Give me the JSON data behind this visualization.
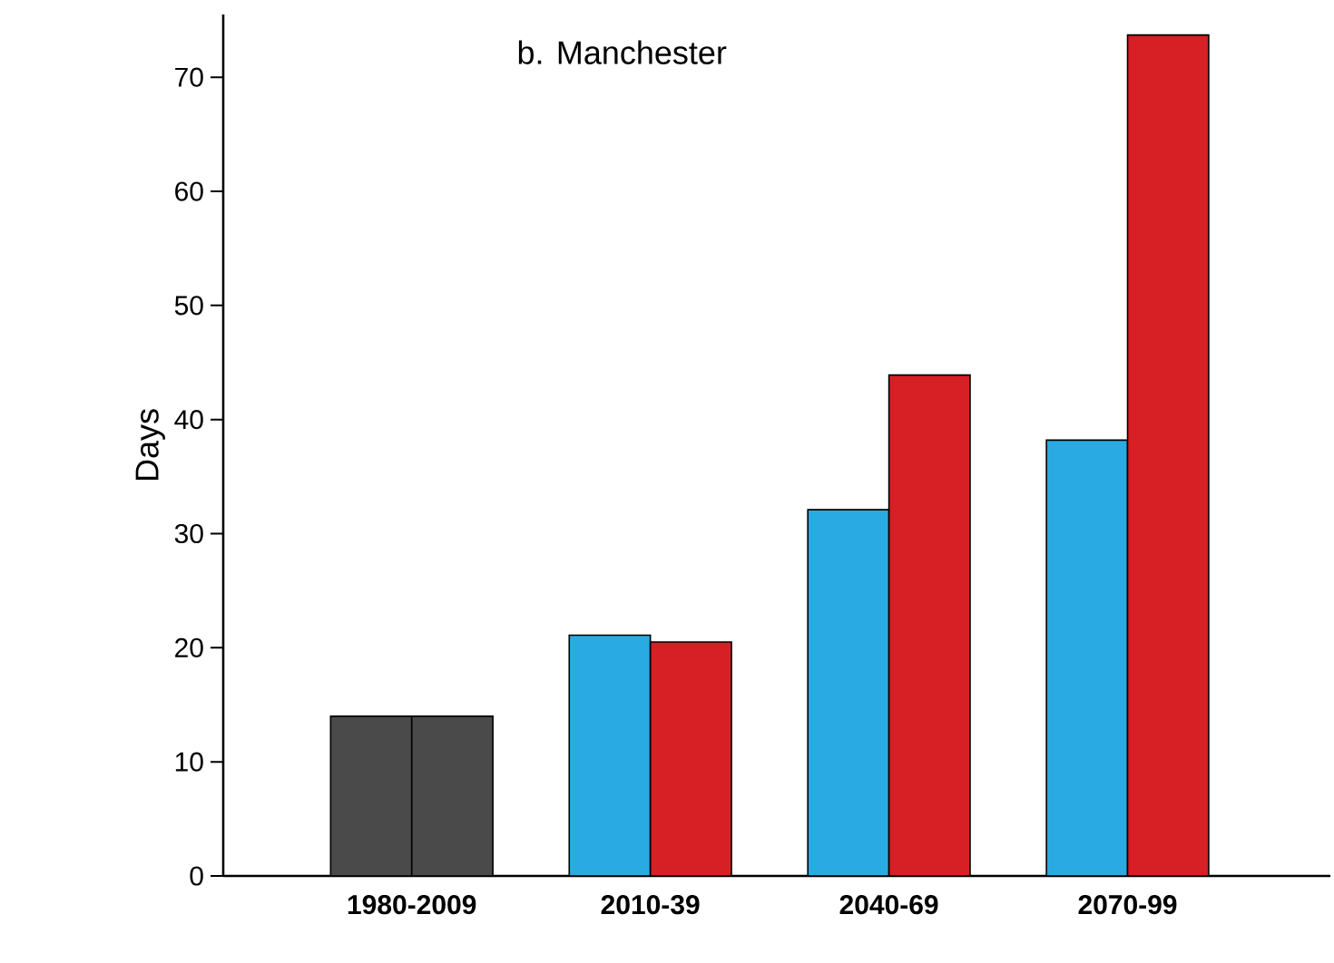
{
  "chart_data": {
    "type": "bar",
    "title": "b. Manchester",
    "ylabel": "Days",
    "categories": [
      "1980-2009",
      "2010-39",
      "2040-69",
      "2070-99"
    ],
    "series": [
      {
        "colors": [
          "#4a4a4a",
          "#29aae2",
          "#29aae2",
          "#29aae2"
        ],
        "values": [
          14,
          21.1,
          32.1,
          38.2
        ]
      },
      {
        "colors": [
          "#4a4a4a",
          "#d71f26",
          "#d71f26",
          "#d71f26"
        ],
        "values": [
          14,
          20.5,
          43.9,
          73.7
        ]
      }
    ],
    "ylim": [
      0,
      75.5
    ],
    "yticks": [
      0,
      10,
      20,
      30,
      40,
      50,
      60,
      70
    ],
    "grid": false
  }
}
